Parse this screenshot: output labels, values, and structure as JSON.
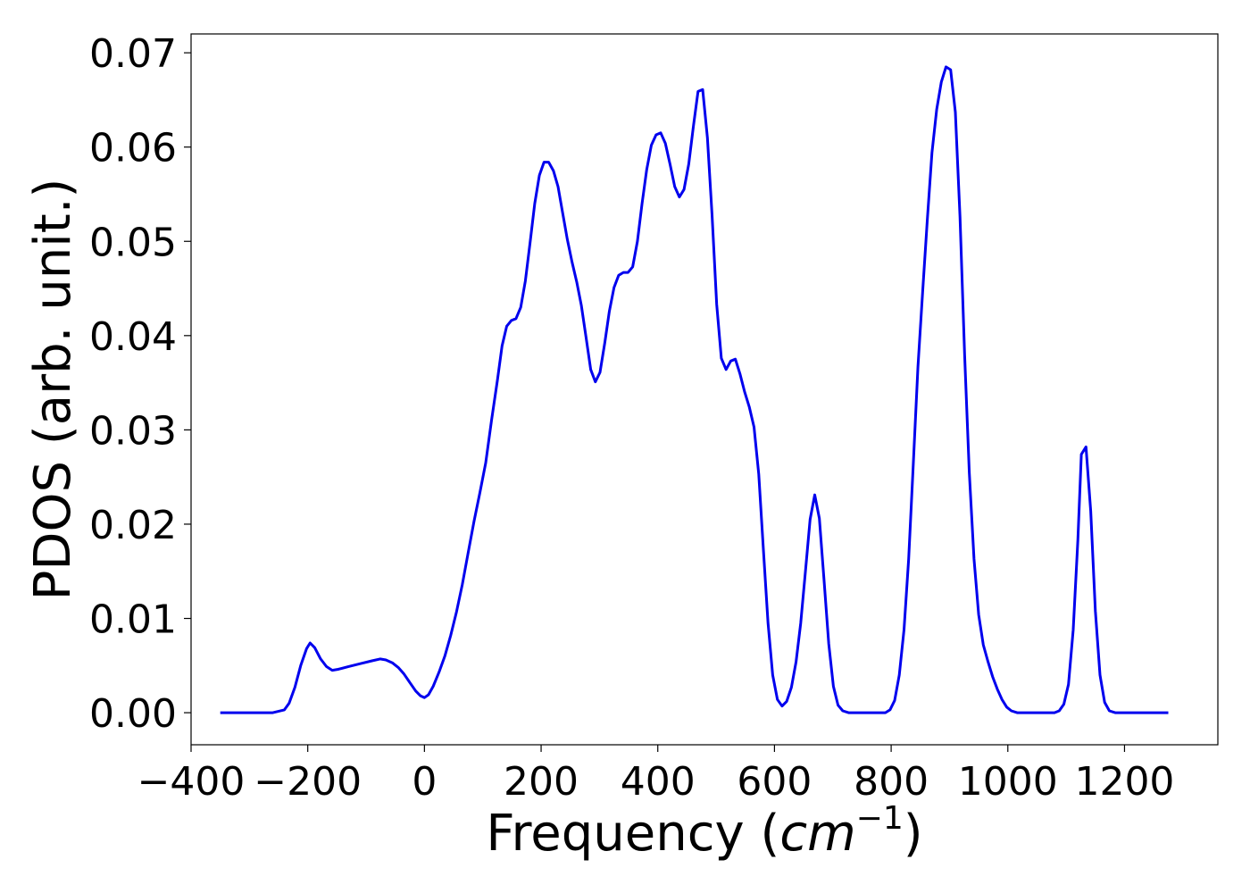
{
  "chart_data": {
    "type": "line",
    "title": "",
    "xlabel": "Frequency (cm",
    "xlabel_sup": "−1",
    "xlabel_close": ")",
    "ylabel": "PDOS (arb. unit.)",
    "xlim": [
      -400,
      1360
    ],
    "ylim": [
      -0.0034,
      0.072
    ],
    "x_ticks": [
      -400,
      -200,
      0,
      200,
      400,
      600,
      800,
      1000,
      1200
    ],
    "x_tick_labels": [
      "−400",
      "−200",
      "0",
      "200",
      "400",
      "600",
      "800",
      "1000",
      "1200"
    ],
    "y_ticks": [
      0.0,
      0.01,
      0.02,
      0.03,
      0.04,
      0.05,
      0.06,
      0.07
    ],
    "y_tick_labels": [
      "0.00",
      "0.01",
      "0.02",
      "0.03",
      "0.04",
      "0.05",
      "0.06",
      "0.07"
    ],
    "grid": false,
    "line_color": "#0000ee",
    "series": [
      {
        "points": [
          [
            -350,
            0.0
          ],
          [
            -300,
            0.0
          ],
          [
            -260,
            0.0
          ],
          [
            -240,
            0.0003
          ],
          [
            -232,
            0.001
          ],
          [
            -222,
            0.0027
          ],
          [
            -212,
            0.005
          ],
          [
            -202,
            0.0068
          ],
          [
            -196,
            0.0074
          ],
          [
            -188,
            0.0069
          ],
          [
            -178,
            0.0057
          ],
          [
            -168,
            0.0049
          ],
          [
            -158,
            0.0045
          ],
          [
            -148,
            0.0046
          ],
          [
            -130,
            0.0049
          ],
          [
            -110,
            0.0052
          ],
          [
            -90,
            0.0055
          ],
          [
            -76,
            0.0057
          ],
          [
            -66,
            0.0056
          ],
          [
            -55,
            0.0053
          ],
          [
            -45,
            0.0048
          ],
          [
            -35,
            0.0041
          ],
          [
            -25,
            0.0032
          ],
          [
            -15,
            0.0023
          ],
          [
            -7,
            0.0018
          ],
          [
            0,
            0.0016
          ],
          [
            7,
            0.0019
          ],
          [
            15,
            0.0028
          ],
          [
            25,
            0.0043
          ],
          [
            35,
            0.006
          ],
          [
            45,
            0.0082
          ],
          [
            55,
            0.0107
          ],
          [
            65,
            0.0136
          ],
          [
            75,
            0.017
          ],
          [
            85,
            0.0203
          ],
          [
            95,
            0.0233
          ],
          [
            105,
            0.0265
          ],
          [
            115,
            0.031
          ],
          [
            125,
            0.0352
          ],
          [
            133,
            0.0389
          ],
          [
            141,
            0.041
          ],
          [
            149,
            0.0416
          ],
          [
            157,
            0.0418
          ],
          [
            165,
            0.043
          ],
          [
            173,
            0.0458
          ],
          [
            181,
            0.0498
          ],
          [
            189,
            0.054
          ],
          [
            197,
            0.057
          ],
          [
            205,
            0.0584
          ],
          [
            213,
            0.0584
          ],
          [
            221,
            0.0575
          ],
          [
            229,
            0.0558
          ],
          [
            237,
            0.053
          ],
          [
            245,
            0.0502
          ],
          [
            253,
            0.0478
          ],
          [
            261,
            0.0457
          ],
          [
            269,
            0.0432
          ],
          [
            277,
            0.0398
          ],
          [
            285,
            0.0364
          ],
          [
            293,
            0.0351
          ],
          [
            301,
            0.0361
          ],
          [
            309,
            0.0392
          ],
          [
            317,
            0.0426
          ],
          [
            325,
            0.0451
          ],
          [
            333,
            0.0464
          ],
          [
            341,
            0.0467
          ],
          [
            349,
            0.0467
          ],
          [
            357,
            0.0473
          ],
          [
            365,
            0.05
          ],
          [
            373,
            0.054
          ],
          [
            381,
            0.0576
          ],
          [
            389,
            0.0602
          ],
          [
            397,
            0.0613
          ],
          [
            405,
            0.0615
          ],
          [
            413,
            0.0604
          ],
          [
            421,
            0.0582
          ],
          [
            429,
            0.0558
          ],
          [
            437,
            0.0547
          ],
          [
            445,
            0.0555
          ],
          [
            453,
            0.0582
          ],
          [
            461,
            0.0622
          ],
          [
            469,
            0.0659
          ],
          [
            477,
            0.0661
          ],
          [
            485,
            0.061
          ],
          [
            493,
            0.0528
          ],
          [
            501,
            0.0433
          ],
          [
            509,
            0.0376
          ],
          [
            517,
            0.0364
          ],
          [
            525,
            0.0373
          ],
          [
            533,
            0.0375
          ],
          [
            541,
            0.0359
          ],
          [
            549,
            0.034
          ],
          [
            557,
            0.0324
          ],
          [
            565,
            0.0303
          ],
          [
            573,
            0.0253
          ],
          [
            581,
            0.0173
          ],
          [
            589,
            0.0095
          ],
          [
            597,
            0.004
          ],
          [
            605,
            0.0014
          ],
          [
            613,
            0.0007
          ],
          [
            621,
            0.0012
          ],
          [
            629,
            0.0027
          ],
          [
            637,
            0.0054
          ],
          [
            645,
            0.0095
          ],
          [
            653,
            0.0149
          ],
          [
            661,
            0.0205
          ],
          [
            669,
            0.0231
          ],
          [
            677,
            0.0206
          ],
          [
            685,
            0.0141
          ],
          [
            693,
            0.0073
          ],
          [
            701,
            0.0028
          ],
          [
            709,
            0.0008
          ],
          [
            717,
            0.0002
          ],
          [
            727,
            0.0
          ],
          [
            790,
            0.0
          ],
          [
            798,
            0.0003
          ],
          [
            806,
            0.0013
          ],
          [
            814,
            0.004
          ],
          [
            822,
            0.0088
          ],
          [
            830,
            0.0163
          ],
          [
            838,
            0.0264
          ],
          [
            846,
            0.0367
          ],
          [
            854,
            0.0447
          ],
          [
            862,
            0.0523
          ],
          [
            870,
            0.0594
          ],
          [
            878,
            0.064
          ],
          [
            886,
            0.0669
          ],
          [
            894,
            0.0685
          ],
          [
            902,
            0.0682
          ],
          [
            910,
            0.0637
          ],
          [
            918,
            0.0526
          ],
          [
            926,
            0.0379
          ],
          [
            934,
            0.0255
          ],
          [
            942,
            0.0163
          ],
          [
            950,
            0.0104
          ],
          [
            958,
            0.0072
          ],
          [
            966,
            0.0054
          ],
          [
            974,
            0.0038
          ],
          [
            982,
            0.0025
          ],
          [
            990,
            0.0014
          ],
          [
            998,
            0.0006
          ],
          [
            1006,
            0.0002
          ],
          [
            1016,
            0.0
          ],
          [
            1080,
            0.0
          ],
          [
            1088,
            0.0002
          ],
          [
            1096,
            0.0009
          ],
          [
            1104,
            0.003
          ],
          [
            1112,
            0.0088
          ],
          [
            1120,
            0.0183
          ],
          [
            1126,
            0.0274
          ],
          [
            1134,
            0.0282
          ],
          [
            1142,
            0.0214
          ],
          [
            1150,
            0.0108
          ],
          [
            1158,
            0.004
          ],
          [
            1166,
            0.0011
          ],
          [
            1174,
            0.0002
          ],
          [
            1184,
            0.0
          ],
          [
            1275,
            0.0
          ]
        ]
      }
    ]
  }
}
